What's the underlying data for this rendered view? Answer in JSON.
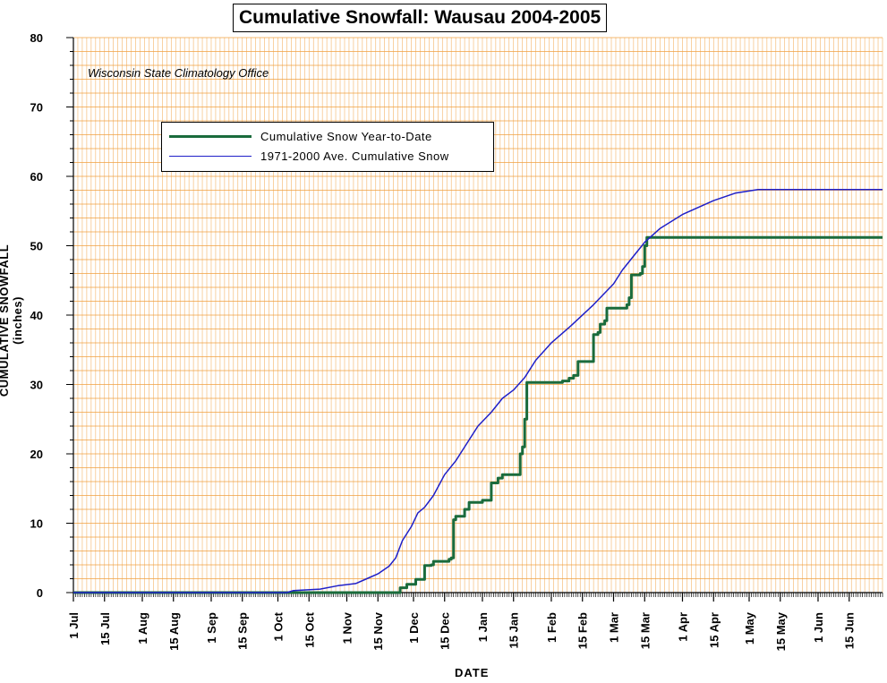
{
  "chart_data": {
    "type": "line",
    "title": "Cumulative Snowfall: Wausau 2004-2005",
    "subtitle": "Wisconsin State Climatology Office",
    "xlabel": "DATE",
    "ylabel": "CUMULATIVE SNOWFALL (inches)",
    "ylim": [
      0,
      80
    ],
    "yticks": [
      0,
      10,
      20,
      30,
      40,
      50,
      60,
      70,
      80
    ],
    "xlim": [
      "2004-07-01",
      "2005-06-30"
    ],
    "xtick_labels": [
      {
        "date": "2004-07-01",
        "label": "1 Jul"
      },
      {
        "date": "2004-07-15",
        "label": "15 Jul"
      },
      {
        "date": "2004-08-01",
        "label": "1 Aug"
      },
      {
        "date": "2004-08-15",
        "label": "15 Aug"
      },
      {
        "date": "2004-09-01",
        "label": "1 Sep"
      },
      {
        "date": "2004-09-15",
        "label": "15 Sep"
      },
      {
        "date": "2004-10-01",
        "label": "1 Oct"
      },
      {
        "date": "2004-10-15",
        "label": "15 Oct"
      },
      {
        "date": "2004-11-01",
        "label": "1 Nov"
      },
      {
        "date": "2004-11-15",
        "label": "15 Nov"
      },
      {
        "date": "2004-12-01",
        "label": "1 Dec"
      },
      {
        "date": "2004-12-15",
        "label": "15 Dec"
      },
      {
        "date": "2005-01-01",
        "label": "1 Jan"
      },
      {
        "date": "2005-01-15",
        "label": "15 Jan"
      },
      {
        "date": "2005-02-01",
        "label": "1 Feb"
      },
      {
        "date": "2005-02-15",
        "label": "15 Feb"
      },
      {
        "date": "2005-03-01",
        "label": "1 Mar"
      },
      {
        "date": "2005-03-15",
        "label": "15 Mar"
      },
      {
        "date": "2005-04-01",
        "label": "1 Apr"
      },
      {
        "date": "2005-04-15",
        "label": "15 Apr"
      },
      {
        "date": "2005-05-01",
        "label": "1 May"
      },
      {
        "date": "2005-05-15",
        "label": "15 May"
      },
      {
        "date": "2005-06-01",
        "label": "1 Jun"
      },
      {
        "date": "2005-06-15",
        "label": "15 Jun"
      }
    ],
    "grid": true,
    "grid_color": "#f0a040",
    "legend_position": "upper-left",
    "series": [
      {
        "name": "Cumulative Snow Year-to-Date",
        "color": "#1a6b3c",
        "style": "step",
        "points": [
          [
            "2004-07-01",
            0
          ],
          [
            "2004-11-23",
            0
          ],
          [
            "2004-11-25",
            0.7
          ],
          [
            "2004-11-28",
            1.2
          ],
          [
            "2004-12-01",
            1.2
          ],
          [
            "2004-12-02",
            1.9
          ],
          [
            "2004-12-05",
            1.9
          ],
          [
            "2004-12-06",
            3.9
          ],
          [
            "2004-12-09",
            4.0
          ],
          [
            "2004-12-10",
            4.5
          ],
          [
            "2004-12-17",
            4.8
          ],
          [
            "2004-12-18",
            5.0
          ],
          [
            "2004-12-19",
            10.5
          ],
          [
            "2004-12-20",
            11.0
          ],
          [
            "2004-12-23",
            11.0
          ],
          [
            "2004-12-24",
            12.0
          ],
          [
            "2004-12-26",
            13.0
          ],
          [
            "2004-12-30",
            13.0
          ],
          [
            "2005-01-01",
            13.3
          ],
          [
            "2005-01-04",
            13.3
          ],
          [
            "2005-01-05",
            15.8
          ],
          [
            "2005-01-08",
            16.5
          ],
          [
            "2005-01-10",
            17.0
          ],
          [
            "2005-01-17",
            17.0
          ],
          [
            "2005-01-18",
            20.0
          ],
          [
            "2005-01-19",
            21.0
          ],
          [
            "2005-01-20",
            25.0
          ],
          [
            "2005-01-21",
            30.3
          ],
          [
            "2005-02-06",
            30.5
          ],
          [
            "2005-02-09",
            30.9
          ],
          [
            "2005-02-11",
            31.3
          ],
          [
            "2005-02-13",
            33.3
          ],
          [
            "2005-02-19",
            33.3
          ],
          [
            "2005-02-20",
            37.2
          ],
          [
            "2005-02-22",
            37.5
          ],
          [
            "2005-02-23",
            38.7
          ],
          [
            "2005-02-25",
            39.2
          ],
          [
            "2005-02-26",
            41.0
          ],
          [
            "2005-03-04",
            41.0
          ],
          [
            "2005-03-07",
            41.5
          ],
          [
            "2005-03-08",
            42.5
          ],
          [
            "2005-03-09",
            45.8
          ],
          [
            "2005-03-13",
            46.0
          ],
          [
            "2005-03-14",
            47.0
          ],
          [
            "2005-03-15",
            50.0
          ],
          [
            "2005-03-16",
            51.2
          ],
          [
            "2005-06-30",
            51.2
          ]
        ]
      },
      {
        "name": "1971-2000 Ave. Cumulative Snow",
        "color": "#1f1fc8",
        "style": "line",
        "points": [
          [
            "2004-07-01",
            0
          ],
          [
            "2004-10-05",
            0
          ],
          [
            "2004-10-08",
            0.3
          ],
          [
            "2004-10-20",
            0.5
          ],
          [
            "2004-10-28",
            1.0
          ],
          [
            "2004-11-05",
            1.3
          ],
          [
            "2004-11-10",
            2.0
          ],
          [
            "2004-11-15",
            2.7
          ],
          [
            "2004-11-20",
            3.8
          ],
          [
            "2004-11-23",
            5.0
          ],
          [
            "2004-11-26",
            7.5
          ],
          [
            "2004-11-30",
            9.5
          ],
          [
            "2004-12-03",
            11.5
          ],
          [
            "2004-12-06",
            12.3
          ],
          [
            "2004-12-10",
            14.0
          ],
          [
            "2004-12-15",
            17.0
          ],
          [
            "2004-12-20",
            19.0
          ],
          [
            "2004-12-25",
            21.5
          ],
          [
            "2004-12-30",
            24.0
          ],
          [
            "2005-01-05",
            26.0
          ],
          [
            "2005-01-10",
            28.0
          ],
          [
            "2005-01-15",
            29.2
          ],
          [
            "2005-01-20",
            31.0
          ],
          [
            "2005-01-25",
            33.5
          ],
          [
            "2005-02-01",
            36.0
          ],
          [
            "2005-02-10",
            38.5
          ],
          [
            "2005-02-20",
            41.5
          ],
          [
            "2005-03-01",
            44.5
          ],
          [
            "2005-03-05",
            46.5
          ],
          [
            "2005-03-10",
            48.5
          ],
          [
            "2005-03-15",
            50.5
          ],
          [
            "2005-03-22",
            52.5
          ],
          [
            "2005-04-01",
            54.5
          ],
          [
            "2005-04-15",
            56.5
          ],
          [
            "2005-04-25",
            57.6
          ],
          [
            "2005-05-05",
            58.1
          ],
          [
            "2005-06-30",
            58.1
          ]
        ]
      }
    ]
  }
}
